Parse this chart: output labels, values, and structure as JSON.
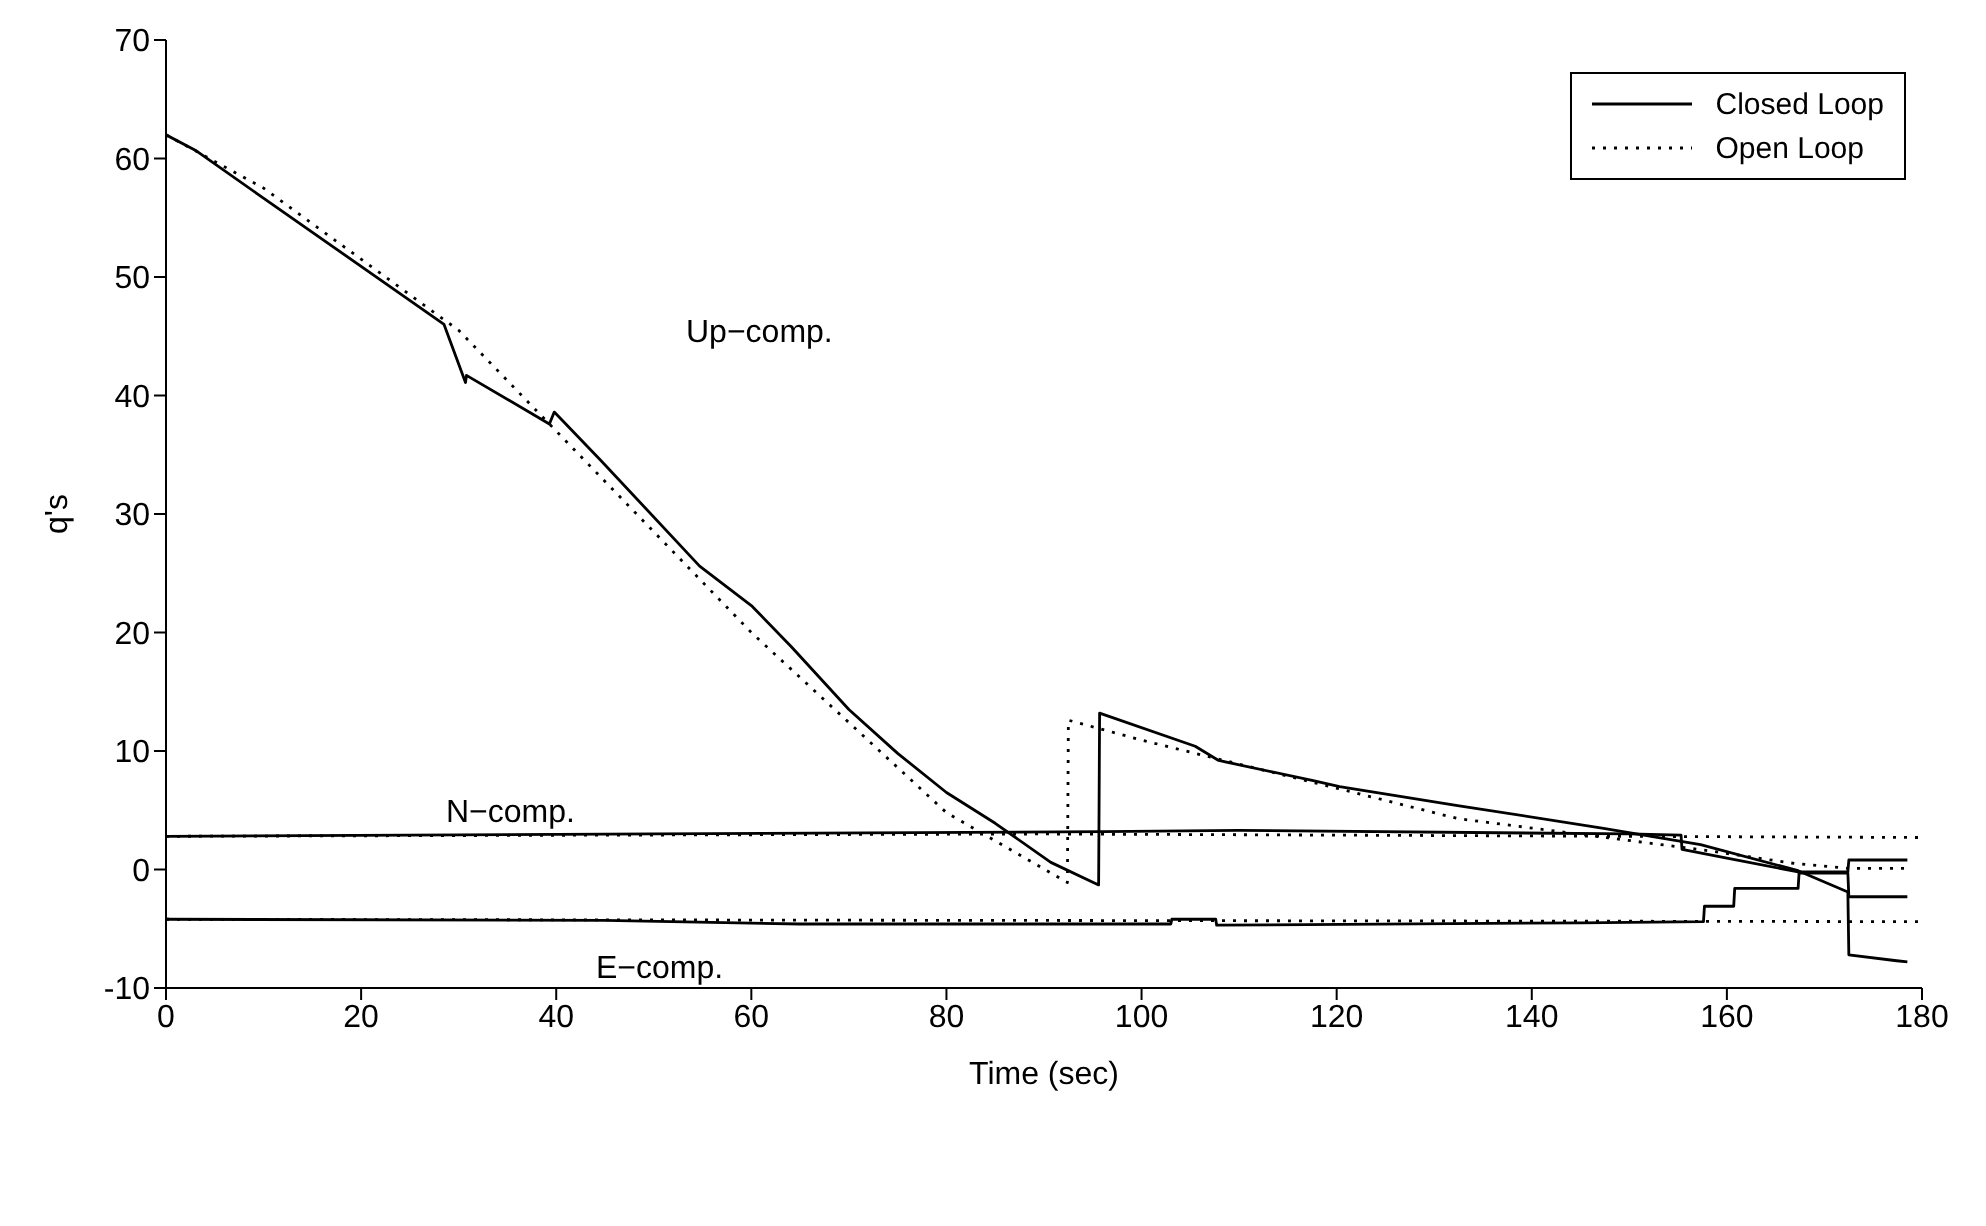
{
  "chart_data": {
    "type": "line",
    "xlabel": "Time (sec)",
    "ylabel": "q's",
    "xlim": [
      0,
      180
    ],
    "xticks": [
      0,
      20,
      40,
      60,
      80,
      100,
      120,
      140,
      160,
      180
    ],
    "ylim": [
      -10,
      70
    ],
    "yticks": [
      -10,
      0,
      10,
      20,
      30,
      40,
      50,
      60,
      70
    ],
    "legend": "top right",
    "marker": "none",
    "annotations": [
      "Up−comp.",
      "N−comp.",
      "E−comp."
    ],
    "series": [
      {
        "name": "Closed Loop",
        "color": "#000000",
        "line_style": "solid",
        "x": [
          0,
          3,
          9.4,
          28.5,
          30.7,
          30.8,
          39.3,
          39.8,
          44.6,
          54.7,
          60.1,
          64.1,
          70,
          75,
          80,
          85,
          90.7,
          95.6,
          95.7,
          105.5,
          107.9,
          117.6,
          120.3,
          132.4,
          147.2,
          157.3,
          167.3,
          172.4,
          172.5,
          177.4,
          178.5
        ],
        "values": [
          62,
          60.7,
          57,
          46,
          41.1,
          41.7,
          37.6,
          38.6,
          34.5,
          25.6,
          22.2,
          18.8,
          13.5,
          9.8,
          6.5,
          3.9,
          0.6,
          -1.3,
          13.2,
          10.4,
          9.2,
          7.5,
          7,
          5.4,
          3.5,
          2.1,
          -0.1,
          -1.9,
          -7.2,
          -7.7,
          -7.8
        ]
      },
      {
        "name": "Open Loop",
        "color": "#000000",
        "line_style": "dotted",
        "x": [
          0,
          10,
          30,
          40,
          60,
          80,
          92.4,
          92.5,
          100.1,
          120.3,
          132.4,
          158,
          167,
          172.4,
          178.5
        ],
        "values": [
          62,
          57.5,
          45.5,
          37,
          20,
          4.8,
          -1.1,
          12.6,
          10.9,
          6.8,
          4.3,
          1.6,
          0.5,
          0.1,
          0.1
        ]
      },
      {
        "color": "#000000",
        "line_style": "solid",
        "x": [
          0,
          50,
          96,
          110,
          150,
          155.3,
          155.4,
          160.4,
          167.3,
          172.4,
          172.5,
          178.5
        ],
        "values": [
          2.8,
          3,
          3.2,
          3.3,
          3,
          2.9,
          1.7,
          0.9,
          -0.2,
          -0.2,
          0.8,
          0.8
        ]
      },
      {
        "color": "#000000",
        "line_style": "dotted",
        "x": [
          0,
          90,
          180
        ],
        "values": [
          2.8,
          3,
          2.7
        ]
      },
      {
        "color": "#000000",
        "line_style": "solid",
        "x": [
          0,
          45,
          65,
          103,
          103.1,
          107.6,
          107.7,
          145,
          157.6,
          157.7,
          160.7,
          160.8,
          167.3,
          167.4,
          172.4,
          172.5,
          178.5
        ],
        "values": [
          -4.2,
          -4.3,
          -4.6,
          -4.6,
          -4.2,
          -4.2,
          -4.7,
          -4.5,
          -4.4,
          -3.1,
          -3.1,
          -1.6,
          -1.6,
          -0.3,
          -0.3,
          -2.3,
          -2.3
        ]
      },
      {
        "color": "#000000",
        "line_style": "dotted",
        "x": [
          0,
          90,
          180
        ],
        "values": [
          -4.2,
          -4.3,
          -4.4
        ]
      }
    ]
  }
}
